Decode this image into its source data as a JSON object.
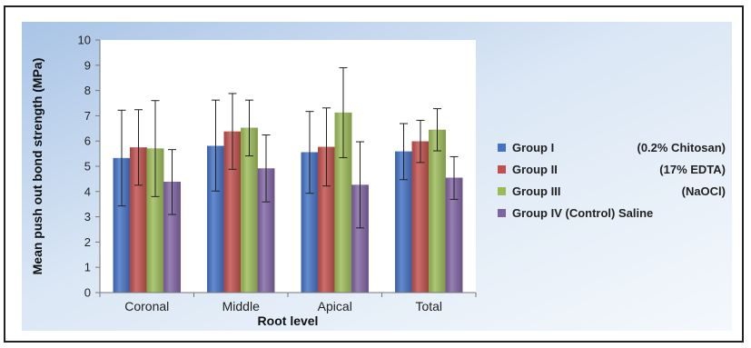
{
  "chart_data": {
    "type": "bar",
    "title": "",
    "xlabel": "Root level",
    "ylabel": "Mean push out bond strength (MPa)",
    "ylim": [
      0,
      10
    ],
    "yticks": [
      0,
      1,
      2,
      3,
      4,
      5,
      6,
      7,
      8,
      9,
      10
    ],
    "grid": false,
    "legend_position": "right",
    "categories": [
      "Coronal",
      "Middle",
      "Apical",
      "Total"
    ],
    "series": [
      {
        "name": "Group I",
        "legend_note": "(0.2% Chitosan)",
        "color": "#4472c4",
        "values": [
          5.32,
          5.8,
          5.55,
          5.58
        ],
        "err_low": [
          3.43,
          4.02,
          3.93,
          4.47
        ],
        "err_high": [
          7.22,
          7.62,
          7.17,
          6.69
        ]
      },
      {
        "name": "Group II",
        "legend_note": "(17% EDTA)",
        "color": "#c0504d",
        "values": [
          5.74,
          6.37,
          5.76,
          5.98
        ],
        "err_low": [
          4.25,
          4.88,
          4.22,
          5.15
        ],
        "err_high": [
          7.24,
          7.88,
          7.31,
          6.82
        ]
      },
      {
        "name": "Group III",
        "legend_note": "(NaOCl)",
        "color": "#9bbb59",
        "values": [
          5.7,
          6.52,
          7.12,
          6.44
        ],
        "err_low": [
          3.8,
          5.41,
          5.34,
          5.61
        ],
        "err_high": [
          7.6,
          7.62,
          8.9,
          7.28
        ]
      },
      {
        "name": "Group IV (Control) Saline",
        "legend_note": "",
        "color": "#8064a2",
        "values": [
          4.38,
          4.91,
          4.26,
          4.54
        ],
        "err_low": [
          3.09,
          3.59,
          2.56,
          3.69
        ],
        "err_high": [
          5.66,
          6.24,
          5.97,
          5.38
        ]
      }
    ]
  }
}
